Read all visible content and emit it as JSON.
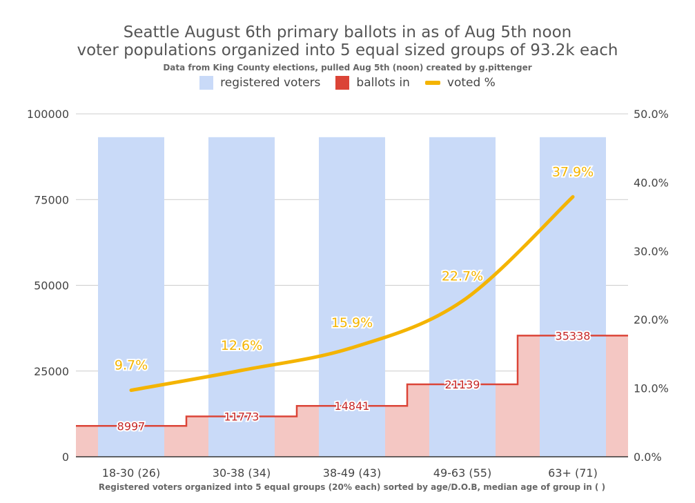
{
  "chart_data": {
    "type": "bar",
    "title_line1": "Seattle August 6th  primary ballots in as of Aug 5th noon",
    "title_line2": "voter populations organized into 5 equal sized groups of 93.2k each",
    "subtitle": "Data from King County elections, pulled Aug 5th (noon) created by g.pittenger",
    "xlabel": "Registered voters organized into 5 equal groups (20% each) sorted by age/D.O.B, median age of group in ( )",
    "categories": [
      "18-30 (26)",
      "30-38 (34)",
      "38-49 (43)",
      "49-63 (55)",
      "63+ (71)"
    ],
    "series": [
      {
        "name": "registered voters",
        "chart": "bar",
        "axis": "left",
        "values": [
          93200,
          93200,
          93200,
          93200,
          93200
        ],
        "color": "#c9daf8"
      },
      {
        "name": "ballots in",
        "chart": "stepped-area",
        "axis": "left",
        "values": [
          8997,
          11773,
          14841,
          21139,
          35338
        ],
        "labels": [
          "8997",
          "11773",
          "14841",
          "21139",
          "35338"
        ],
        "color": "#db4437",
        "fill": "#f4c7c3"
      },
      {
        "name": "voted %",
        "chart": "line",
        "axis": "right",
        "values": [
          9.7,
          12.6,
          15.9,
          22.7,
          37.9
        ],
        "labels": [
          "9.7%",
          "12.6%",
          "15.9%",
          "22.7%",
          "37.9%"
        ],
        "color": "#f4b400"
      }
    ],
    "y_left": {
      "min": 0,
      "max": 100000,
      "ticks": [
        "0",
        "25000",
        "50000",
        "75000",
        "100000"
      ]
    },
    "y_right": {
      "min": 0,
      "max": 50,
      "ticks": [
        "0.0%",
        "10.0%",
        "20.0%",
        "30.0%",
        "40.0%",
        "50.0%"
      ]
    },
    "grid": true,
    "legend_position": "top"
  }
}
